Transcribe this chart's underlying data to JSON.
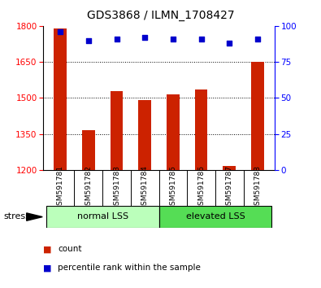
{
  "title": "GDS3868 / ILMN_1708427",
  "samples": [
    "GSM591781",
    "GSM591782",
    "GSM591783",
    "GSM591784",
    "GSM591785",
    "GSM591786",
    "GSM591787",
    "GSM591788"
  ],
  "counts": [
    1790,
    1365,
    1530,
    1490,
    1515,
    1535,
    1215,
    1650
  ],
  "percentiles": [
    96,
    90,
    91,
    92,
    91,
    91,
    88,
    91
  ],
  "ylim_left": [
    1200,
    1800
  ],
  "ylim_right": [
    0,
    100
  ],
  "yticks_left": [
    1200,
    1350,
    1500,
    1650,
    1800
  ],
  "yticks_right": [
    0,
    25,
    50,
    75,
    100
  ],
  "bar_color": "#cc2200",
  "dot_color": "#0000cc",
  "groups": [
    {
      "label": "normal LSS",
      "start": 0,
      "end": 4,
      "color": "#bbffbb"
    },
    {
      "label": "elevated LSS",
      "start": 4,
      "end": 8,
      "color": "#55dd55"
    }
  ],
  "stress_label": "stress",
  "legend_items": [
    {
      "color": "#cc2200",
      "label": "count"
    },
    {
      "color": "#0000cc",
      "label": "percentile rank within the sample"
    }
  ],
  "background_color": "#ffffff",
  "bar_width": 0.45
}
